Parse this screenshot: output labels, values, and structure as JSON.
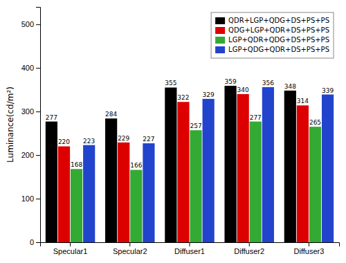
{
  "chart_data": {
    "type": "bar",
    "categories": [
      "Specular1",
      "Specular2",
      "Diffuser1",
      "Diffuser2",
      "Diffuser3"
    ],
    "series": [
      {
        "name": "QDR+LGP+QDG+DS+PS+PS",
        "color": "#000000",
        "values": [
          277,
          284,
          355,
          359,
          348
        ]
      },
      {
        "name": "QDG+LGP+QDR+DS+PS+PS",
        "color": "#dd0000",
        "values": [
          220,
          229,
          322,
          340,
          314
        ]
      },
      {
        "name": "LGP+QDR+QDG+DS+PS+PS",
        "color": "#33aa33",
        "values": [
          168,
          166,
          257,
          277,
          265
        ]
      },
      {
        "name": "LGP+QDG+QDR+DS+PS+PS",
        "color": "#2244cc",
        "values": [
          223,
          227,
          329,
          356,
          339
        ]
      }
    ],
    "ylim": [
      0,
      540
    ],
    "yticks": [
      0,
      100,
      200,
      300,
      400,
      500
    ],
    "ylabel": "Luminance(cd/m²)",
    "data_labels": true,
    "legend": "upper right",
    "grid": false
  }
}
